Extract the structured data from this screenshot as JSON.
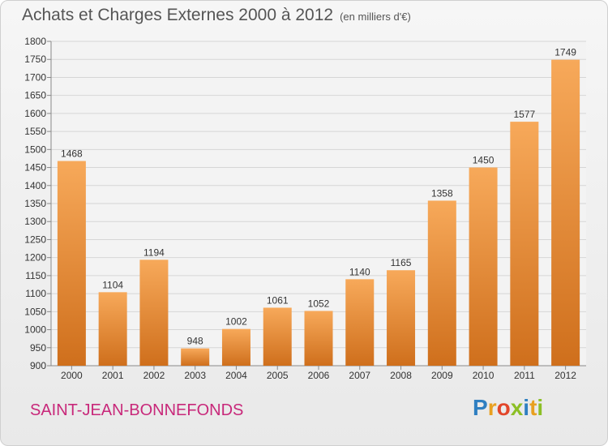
{
  "title": "Achats et Charges Externes 2000 à 2012",
  "subtitle": "(en milliers d'€)",
  "commune": "SAINT-JEAN-BONNEFONDS",
  "logo": {
    "text": "Proxiti",
    "letters": [
      {
        "ch": "P",
        "color": "#2f7fc1"
      },
      {
        "ch": "r",
        "color": "#e8a020"
      },
      {
        "ch": "o",
        "color": "#e2462a"
      },
      {
        "ch": "x",
        "color": "#8cbf26"
      },
      {
        "ch": "i",
        "color": "#2f7fc1"
      },
      {
        "ch": "t",
        "color": "#e8a020"
      },
      {
        "ch": "i",
        "color": "#8cbf26"
      }
    ]
  },
  "colors": {
    "bar_top": "#f7a95a",
    "bar_bottom": "#cf6f1c",
    "commune": "#c8287a",
    "title": "#555555"
  },
  "chart_data": {
    "type": "bar",
    "categories": [
      "2000",
      "2001",
      "2002",
      "2003",
      "2004",
      "2005",
      "2006",
      "2007",
      "2008",
      "2009",
      "2010",
      "2011",
      "2012"
    ],
    "values": [
      1468,
      1104,
      1194,
      948,
      1002,
      1061,
      1052,
      1140,
      1165,
      1358,
      1450,
      1577,
      1749
    ],
    "ylim": [
      900,
      1800
    ],
    "yticks": [
      900,
      950,
      1000,
      1050,
      1100,
      1150,
      1200,
      1250,
      1300,
      1350,
      1400,
      1450,
      1500,
      1550,
      1600,
      1650,
      1700,
      1750,
      1800
    ],
    "grid": true,
    "legend": "none"
  }
}
